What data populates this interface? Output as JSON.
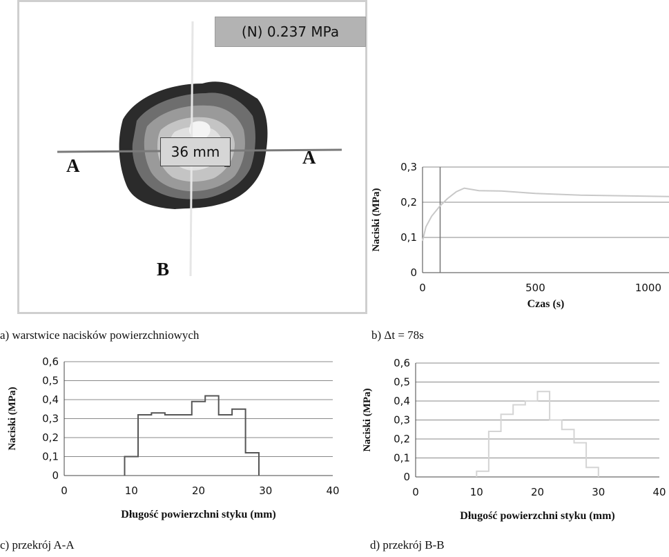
{
  "panel_a": {
    "pressure_label": "(N) 0.237 MPa",
    "dimension_label": "36 mm",
    "marker_left": "A",
    "marker_right": "A",
    "marker_bottom": "B",
    "caption": "a) warstwice nacisków powierzchniowych"
  },
  "chart_data": [
    {
      "id": "b",
      "type": "line",
      "caption": "b) Δt = 78s",
      "xlabel": "Czas (s)",
      "ylabel": "Naciski (MPa)",
      "xlim": [
        0,
        1300
      ],
      "ylim": [
        0,
        0.3
      ],
      "x_ticks": [
        0,
        500,
        1000
      ],
      "y_ticks": [
        0,
        0.1,
        0.2,
        0.3
      ],
      "y_tick_labels": [
        "0",
        "0,1",
        "0,2",
        "0,3"
      ],
      "grid": true,
      "marker_x": 78,
      "series": [
        {
          "x": [
            0,
            15,
            40,
            78,
            110,
            150,
            185,
            250,
            350,
            500,
            700,
            900,
            1100,
            1300
          ],
          "y": [
            0.09,
            0.13,
            0.16,
            0.19,
            0.21,
            0.23,
            0.24,
            0.233,
            0.232,
            0.225,
            0.22,
            0.218,
            0.216,
            0.215
          ]
        }
      ]
    },
    {
      "id": "c",
      "type": "line",
      "step": true,
      "caption": "c) przekrój A-A",
      "xlabel": "Długość powierzchni styku (mm)",
      "ylabel": "Naciski (MPa)",
      "xlim": [
        0,
        40
      ],
      "ylim": [
        0,
        0.6
      ],
      "x_ticks": [
        0,
        10,
        20,
        30,
        40
      ],
      "y_ticks": [
        0,
        0.1,
        0.2,
        0.3,
        0.4,
        0.5,
        0.6
      ],
      "y_tick_labels": [
        "0",
        "0,1",
        "0,2",
        "0,3",
        "0,4",
        "0,5",
        "0,6"
      ],
      "grid": true,
      "series": [
        {
          "x": [
            9,
            11,
            13,
            15,
            17,
            19,
            21,
            23,
            25,
            27,
            29
          ],
          "y": [
            0.1,
            0.32,
            0.33,
            0.32,
            0.32,
            0.39,
            0.42,
            0.32,
            0.35,
            0.12,
            0
          ]
        }
      ]
    },
    {
      "id": "d",
      "type": "line",
      "step": true,
      "caption": "d) przekrój B-B",
      "xlabel": "Długość powierzchni styku (mm)",
      "ylabel": "Naciski (MPa)",
      "xlim": [
        0,
        40
      ],
      "ylim": [
        0,
        0.6
      ],
      "x_ticks": [
        0,
        10,
        20,
        30,
        40
      ],
      "y_ticks": [
        0,
        0.1,
        0.2,
        0.3,
        0.4,
        0.5,
        0.6
      ],
      "y_tick_labels": [
        "0",
        "0,1",
        "0,2",
        "0,3",
        "0,4",
        "0,5",
        "0,6"
      ],
      "grid": true,
      "series": [
        {
          "x": [
            10,
            12,
            14,
            16,
            18,
            20,
            22,
            24,
            26,
            28,
            30
          ],
          "y": [
            0.03,
            0.24,
            0.33,
            0.38,
            0.4,
            0.45,
            0.3,
            0.25,
            0.18,
            0.05,
            0
          ]
        }
      ]
    }
  ]
}
